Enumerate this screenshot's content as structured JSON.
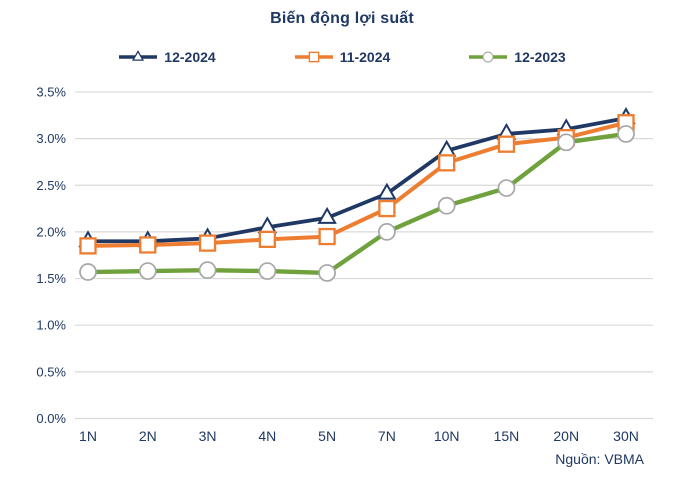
{
  "title": "Biến động lợi suất",
  "colors": {
    "navy": "#1F3864",
    "orange": "#ED7D31",
    "green": "#6FA13C",
    "grid": "#D9D9D9",
    "text": "#1F3864",
    "marker_fill": "#FFFFFF",
    "circle_marker_stroke": "#A6A6A6"
  },
  "chart_data": {
    "type": "line",
    "title": "Biến động lợi suất",
    "categories": [
      "1N",
      "2N",
      "3N",
      "4N",
      "5N",
      "7N",
      "10N",
      "15N",
      "20N",
      "30N"
    ],
    "series": [
      {
        "name": "12-2024",
        "color": "#1F3864",
        "marker": "triangle",
        "marker_stroke": "#1F3864",
        "values": [
          1.9,
          1.9,
          1.93,
          2.05,
          2.15,
          2.41,
          2.87,
          3.05,
          3.1,
          3.22
        ]
      },
      {
        "name": "11-2024",
        "color": "#ED7D31",
        "marker": "square",
        "marker_stroke": "#ED7D31",
        "values": [
          1.85,
          1.86,
          1.88,
          1.92,
          1.95,
          2.25,
          2.74,
          2.94,
          3.01,
          3.17
        ]
      },
      {
        "name": "12-2023",
        "color": "#6FA13C",
        "marker": "circle",
        "marker_stroke": "#A6A6A6",
        "values": [
          1.57,
          1.58,
          1.59,
          1.58,
          1.56,
          2.0,
          2.28,
          2.47,
          2.96,
          3.05
        ]
      }
    ],
    "ylim": [
      0,
      3.5
    ],
    "y_ticks": [
      {
        "value": 0.0,
        "label": "0.0%"
      },
      {
        "value": 0.5,
        "label": "0.5%"
      },
      {
        "value": 1.0,
        "label": "1.0%"
      },
      {
        "value": 1.5,
        "label": "1.5%"
      },
      {
        "value": 2.0,
        "label": "2.0%"
      },
      {
        "value": 2.5,
        "label": "2.5%"
      },
      {
        "value": 3.0,
        "label": "3.0%"
      },
      {
        "value": 3.5,
        "label": "3.5%"
      }
    ],
    "grid": "horizontal",
    "legend_position": "top",
    "source_note": "Nguồn: VBMA"
  }
}
